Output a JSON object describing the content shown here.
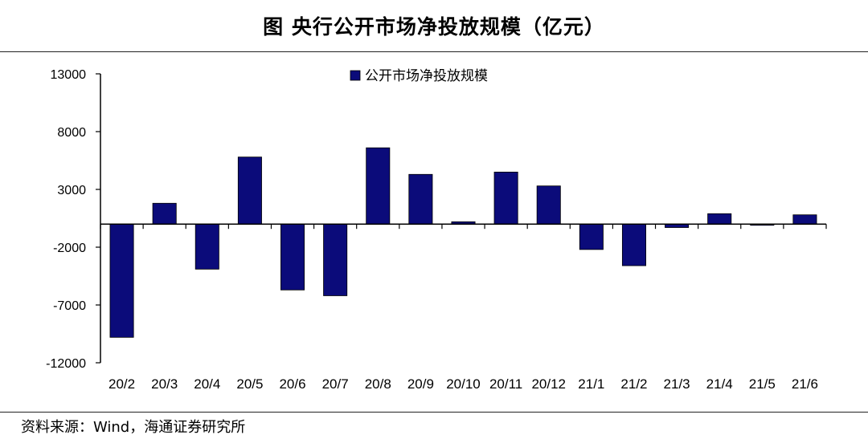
{
  "header": {
    "title": "图  央行公开市场净投放规模（亿元）"
  },
  "footer": {
    "source": "资料来源：Wind，海通证券研究所"
  },
  "colors": {
    "bar": "#0b0b7a",
    "axis": "#000000"
  },
  "chart_data": {
    "type": "bar",
    "title": "图  央行公开市场净投放规模（亿元）",
    "xlabel": "",
    "ylabel": "",
    "ylim": [
      -12000,
      13000
    ],
    "yticks": [
      13000,
      8000,
      3000,
      -2000,
      -7000,
      -12000
    ],
    "yticks_labels": [
      "13000",
      "8000",
      "3000",
      "-2000",
      "-7000",
      "-12000"
    ],
    "grid": false,
    "legend": "top-center",
    "categories": [
      "20/2",
      "20/3",
      "20/4",
      "20/5",
      "20/6",
      "20/7",
      "20/8",
      "20/9",
      "20/10",
      "20/11",
      "20/12",
      "21/1",
      "21/2",
      "21/3",
      "21/4",
      "21/5",
      "21/6"
    ],
    "series": [
      {
        "name": "公开市场净投放规模",
        "values": [
          -9800,
          1800,
          -3900,
          5800,
          -5700,
          -6200,
          6600,
          4300,
          200,
          4500,
          3300,
          -2200,
          -3600,
          -300,
          900,
          -100,
          800
        ]
      }
    ]
  }
}
